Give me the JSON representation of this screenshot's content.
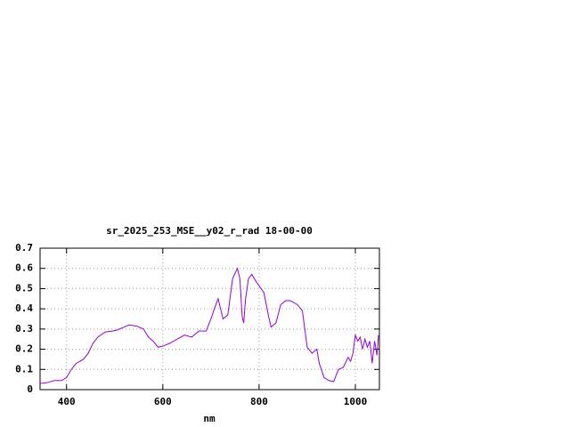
{
  "chart_data": {
    "type": "line",
    "title": "sr_2025_253_MSE__y02_r_rad 18-00-00",
    "x_label": "nm",
    "x": [
      345,
      360,
      375,
      390,
      400,
      410,
      420,
      435,
      445,
      455,
      465,
      480,
      495,
      505,
      520,
      530,
      545,
      560,
      570,
      580,
      590,
      600,
      615,
      630,
      645,
      660,
      675,
      690,
      700,
      710,
      715,
      725,
      735,
      745,
      755,
      760,
      765,
      768,
      772,
      778,
      785,
      795,
      810,
      820,
      825,
      835,
      845,
      855,
      865,
      880,
      890,
      895,
      900,
      910,
      920,
      925,
      935,
      945,
      955,
      965,
      975,
      985,
      990,
      995,
      1000,
      1005,
      1010,
      1015,
      1020,
      1025,
      1030,
      1035,
      1040,
      1045,
      1048
    ],
    "series": [
      {
        "color": "#9400d3",
        "values": [
          0.03,
          0.035,
          0.045,
          0.045,
          0.06,
          0.1,
          0.13,
          0.15,
          0.18,
          0.23,
          0.26,
          0.285,
          0.29,
          0.295,
          0.31,
          0.32,
          0.315,
          0.3,
          0.26,
          0.24,
          0.21,
          0.215,
          0.23,
          0.25,
          0.27,
          0.26,
          0.29,
          0.29,
          0.35,
          0.42,
          0.45,
          0.35,
          0.37,
          0.55,
          0.6,
          0.55,
          0.36,
          0.33,
          0.45,
          0.55,
          0.57,
          0.53,
          0.48,
          0.36,
          0.31,
          0.33,
          0.42,
          0.44,
          0.44,
          0.42,
          0.39,
          0.3,
          0.21,
          0.18,
          0.2,
          0.13,
          0.06,
          0.045,
          0.04,
          0.1,
          0.11,
          0.16,
          0.14,
          0.18,
          0.27,
          0.24,
          0.26,
          0.2,
          0.25,
          0.21,
          0.24,
          0.13,
          0.24,
          0.17,
          0.27
        ]
      }
    ],
    "xlim": [
      345,
      1050
    ],
    "xticks": [
      400,
      600,
      800,
      1000
    ],
    "ylim": [
      0,
      0.7
    ],
    "yticks": [
      0,
      0.1,
      0.2,
      0.3,
      0.4,
      0.5,
      0.6,
      0.7
    ],
    "grid": true
  }
}
